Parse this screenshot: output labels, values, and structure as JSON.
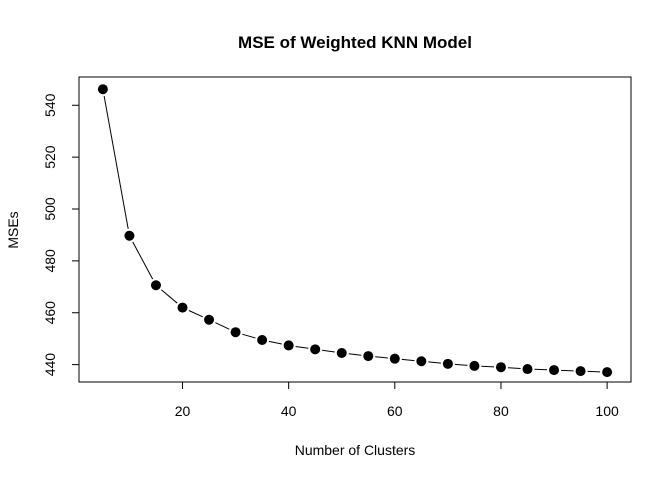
{
  "chart_data": {
    "type": "line",
    "title": "MSE of Weighted KNN Model",
    "xlabel": "Number of Clusters",
    "ylabel": "MSEs",
    "xlim": [
      0.5,
      104.5
    ],
    "ylim": [
      433.3,
      550.9
    ],
    "x_ticks": [
      20,
      40,
      60,
      80,
      100
    ],
    "y_ticks": [
      440,
      460,
      480,
      500,
      520,
      540
    ],
    "grid": false,
    "legend": "none",
    "marker_color": "#000000",
    "line_color": "#000000",
    "series": [
      {
        "x": [
          5,
          10,
          15,
          20,
          25,
          30,
          35,
          40,
          45,
          50,
          55,
          60,
          65,
          70,
          75,
          80,
          85,
          90,
          95,
          100
        ],
        "values": [
          546.2,
          489.7,
          470.6,
          462.0,
          457.3,
          452.5,
          449.5,
          447.4,
          445.9,
          444.5,
          443.3,
          442.3,
          441.3,
          440.3,
          439.5,
          439.0,
          438.3,
          437.9,
          437.5,
          437.1
        ]
      }
    ]
  }
}
